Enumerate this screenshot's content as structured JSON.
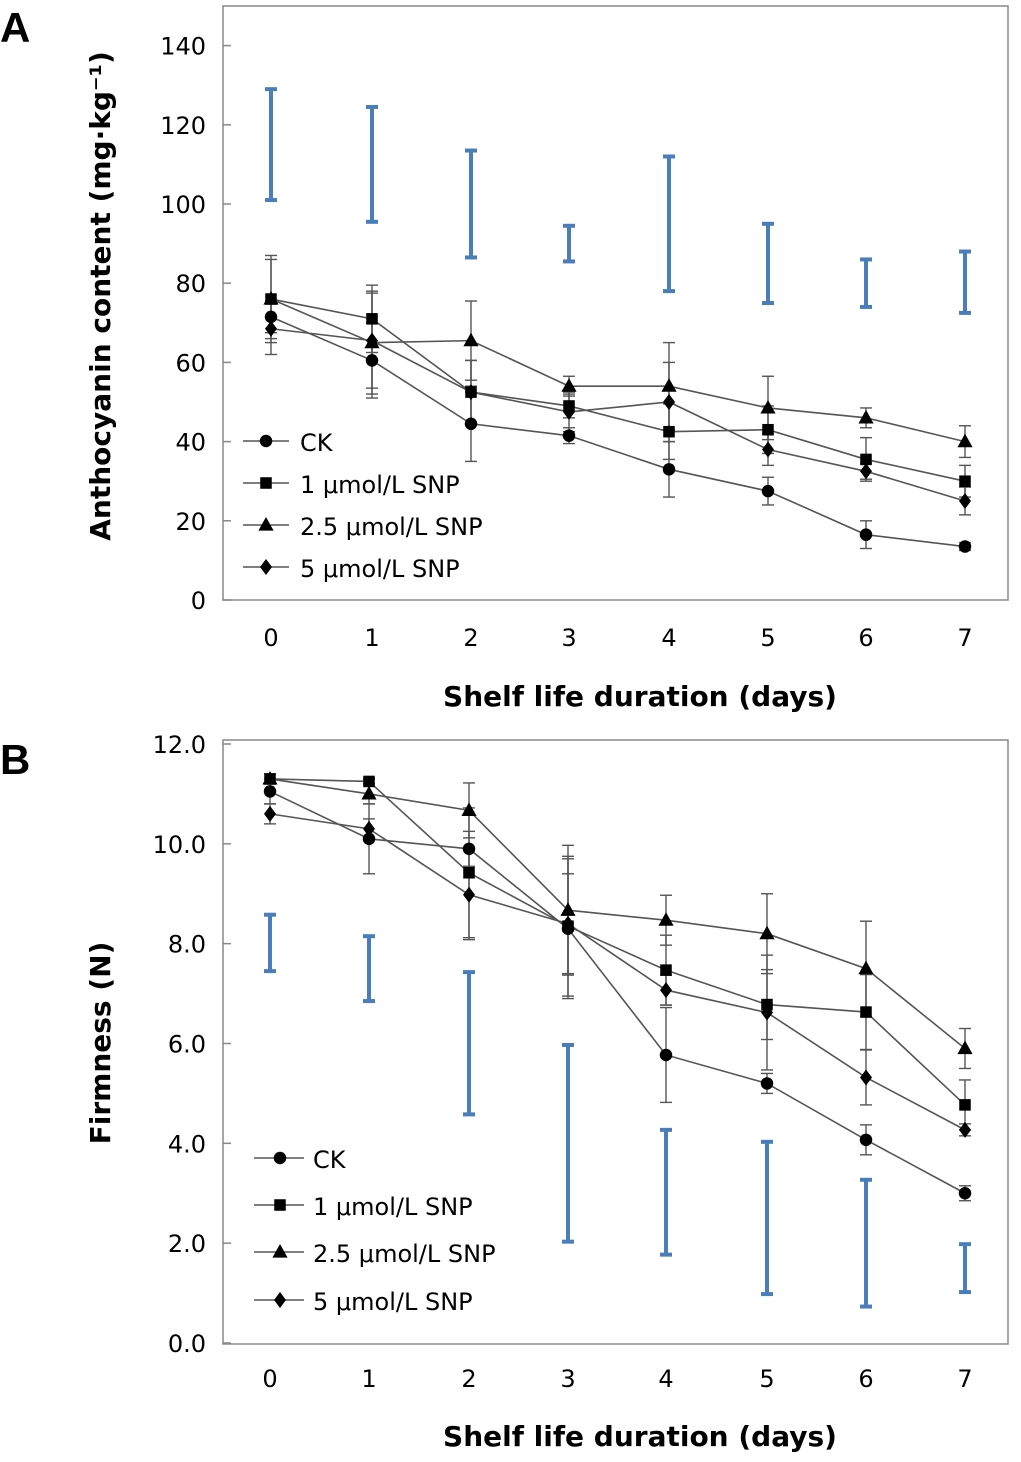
{
  "chart_data": [
    {
      "type": "line",
      "panel_label": "A",
      "xlabel": "Shelf life duration (days)",
      "ylabel": "Anthocyanin content (mg·kg⁻¹)",
      "x": [
        0,
        1,
        2,
        3,
        4,
        5,
        6,
        7
      ],
      "x_tick_labels": [
        "0",
        "1",
        "2",
        "3",
        "4",
        "5",
        "6",
        "7"
      ],
      "ylim": [
        0,
        150
      ],
      "y_ticks": [
        0,
        20,
        40,
        60,
        80,
        100,
        120,
        140
      ],
      "y_tick_labels": [
        "0",
        "20",
        "40",
        "60",
        "80",
        "100",
        "120",
        "140"
      ],
      "legend_position": "bottom-left",
      "series": [
        {
          "name": "CK",
          "marker": "circle",
          "values": [
            71.5,
            60.5,
            44.5,
            41.5,
            33,
            27.5,
            16.5,
            13.5
          ],
          "errors": [
            4,
            9.5,
            9.5,
            2,
            7,
            3.5,
            3.5,
            1
          ]
        },
        {
          "name": "1 μmol/L SNP",
          "marker": "square",
          "values": [
            76,
            71,
            52.5,
            49,
            42.5,
            43,
            35.5,
            30
          ],
          "errors": [
            10,
            8.5,
            8,
            3,
            7,
            6,
            5.5,
            4
          ]
        },
        {
          "name": "2.5 μmol/L SNP",
          "marker": "triangle",
          "values": [
            76,
            65,
            65.5,
            54,
            54,
            48.5,
            46,
            40
          ],
          "errors": [
            11,
            13,
            10,
            2.5,
            11,
            8,
            2.5,
            4
          ]
        },
        {
          "name": "5 μmol/L SNP",
          "marker": "diamond",
          "values": [
            68.5,
            65.5,
            52.5,
            47.5,
            50,
            38,
            32.5,
            25
          ],
          "errors": [
            6.5,
            12,
            8,
            5,
            10,
            4,
            2,
            3.5
          ]
        }
      ],
      "lsd_bars": [
        [
          101,
          129
        ],
        [
          95.5,
          124.5
        ],
        [
          86.5,
          113.5
        ],
        [
          85.5,
          94.5
        ],
        [
          78,
          112
        ],
        [
          75,
          95
        ],
        [
          74,
          86
        ],
        [
          72.5,
          88
        ]
      ],
      "lsd_color": "#4A7EBB"
    },
    {
      "type": "line",
      "panel_label": "B",
      "xlabel": "Shelf life duration (days)",
      "ylabel": "Firmness (N)",
      "x": [
        0,
        1,
        2,
        3,
        4,
        5,
        6,
        7
      ],
      "x_tick_labels": [
        "0",
        "1",
        "2",
        "3",
        "4",
        "5",
        "6",
        "7"
      ],
      "ylim": [
        0,
        12
      ],
      "y_ticks": [
        0,
        2,
        4,
        6,
        8,
        10,
        12
      ],
      "y_tick_labels": [
        "0.0",
        "2.0",
        "4.0",
        "6.0",
        "8.0",
        "10.0",
        "12.0"
      ],
      "legend_position": "bottom-left",
      "series": [
        {
          "name": "CK",
          "marker": "circle",
          "values": [
            11.05,
            10.1,
            9.9,
            8.3,
            5.77,
            5.2,
            4.07,
            3.0
          ],
          "errors": [
            0.25,
            0.7,
            0.35,
            1.4,
            0.95,
            0.2,
            0.3,
            0.15
          ]
        },
        {
          "name": "1 μmol/L SNP",
          "marker": "square",
          "values": [
            11.3,
            11.25,
            9.42,
            8.35,
            7.47,
            6.78,
            6.63,
            4.77
          ],
          "errors": [
            0.1,
            0.05,
            1.3,
            1.4,
            0.7,
            0.7,
            0.75,
            0.5
          ]
        },
        {
          "name": "2.5 μmol/L SNP",
          "marker": "triangle",
          "values": [
            11.3,
            11.0,
            10.67,
            8.67,
            8.47,
            8.2,
            7.5,
            5.9
          ],
          "errors": [
            0.1,
            0.2,
            0.55,
            1.3,
            0.5,
            0.8,
            0.95,
            0.4
          ]
        },
        {
          "name": "5 μmol/L SNP",
          "marker": "diamond",
          "values": [
            10.6,
            10.3,
            8.98,
            8.4,
            7.07,
            6.62,
            5.32,
            4.27
          ],
          "errors": [
            0.2,
            0.2,
            0.9,
            1.0,
            0.3,
            1.15,
            0.55,
            0.12
          ]
        }
      ],
      "lsd_bars": [
        [
          7.45,
          8.58
        ],
        [
          6.85,
          8.15
        ],
        [
          4.58,
          7.43
        ],
        [
          2.03,
          5.97
        ],
        [
          1.77,
          4.27
        ],
        [
          0.98,
          4.03
        ],
        [
          0.73,
          3.27
        ],
        [
          1.02,
          1.98
        ]
      ],
      "lsd_color": "#4A7EBB"
    }
  ]
}
